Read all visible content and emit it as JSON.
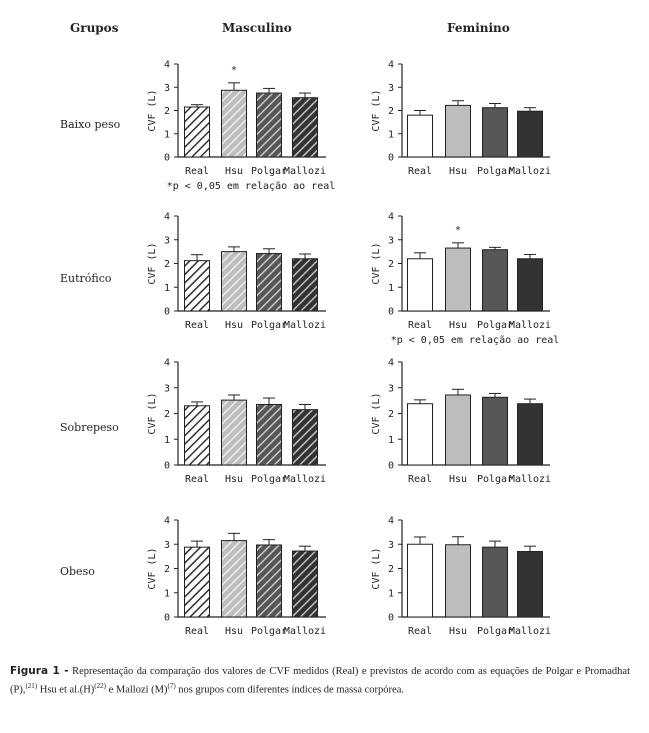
{
  "headers": {
    "groups": "Grupos",
    "male": "Masculino",
    "female": "Feminino"
  },
  "rows": [
    "Baixo peso",
    "Eutrófico",
    "Sobrepeso",
    "Obeso"
  ],
  "caption": {
    "label": "Figura 1 -",
    "text1": "Representação da comparação dos valores de CVF medidos (Real) e previstos de acordo com as equações de Polgar e Promadhat (P),",
    "ref1": "(21)",
    "text2": " Hsu et al.(H)",
    "ref2": "(22)",
    "text3": " e Mallozi (M)",
    "ref3": "(7)",
    "text4": " nos grupos com diferentes índices de massa corpórea."
  },
  "colors": {
    "real": "#ffffff",
    "hsu": "#bdbdbd",
    "polgar": "#575757",
    "mallozi": "#333333"
  },
  "chart_data": [
    {
      "type": "bar",
      "group": "Baixo peso",
      "sex": "Masculino",
      "categories": [
        "Real",
        "Hsu",
        "Polgar",
        "Mallozi"
      ],
      "values": [
        2.15,
        2.87,
        2.75,
        2.55
      ],
      "errors": [
        0.1,
        0.32,
        0.2,
        0.2
      ],
      "ylabel": "CVF (L)",
      "ylim": [
        0,
        4
      ],
      "yticks": [
        0,
        1,
        2,
        3,
        4
      ],
      "significant": [
        false,
        true,
        false,
        false
      ],
      "note": "*p < 0,05 em relação ao real",
      "hatched": true
    },
    {
      "type": "bar",
      "group": "Baixo peso",
      "sex": "Feminino",
      "categories": [
        "Real",
        "Hsu",
        "Polgar",
        "Mallozi"
      ],
      "values": [
        1.8,
        2.22,
        2.12,
        1.97
      ],
      "errors": [
        0.2,
        0.2,
        0.18,
        0.15
      ],
      "ylabel": "CVF (L)",
      "ylim": [
        0,
        4
      ],
      "yticks": [
        0,
        1,
        2,
        3,
        4
      ],
      "significant": [
        false,
        false,
        false,
        false
      ],
      "note": "",
      "hatched": false
    },
    {
      "type": "bar",
      "group": "Eutrófico",
      "sex": "Masculino",
      "categories": [
        "Real",
        "Hsu",
        "Polgar",
        "Mallozi"
      ],
      "values": [
        2.12,
        2.5,
        2.42,
        2.2
      ],
      "errors": [
        0.25,
        0.2,
        0.2,
        0.2
      ],
      "ylabel": "CVF (L)",
      "ylim": [
        0,
        4
      ],
      "yticks": [
        0,
        1,
        2,
        3,
        4
      ],
      "significant": [
        false,
        false,
        false,
        false
      ],
      "note": "",
      "hatched": true
    },
    {
      "type": "bar",
      "group": "Eutrófico",
      "sex": "Feminino",
      "categories": [
        "Real",
        "Hsu",
        "Polgar",
        "Mallozi"
      ],
      "values": [
        2.2,
        2.65,
        2.58,
        2.2
      ],
      "errors": [
        0.25,
        0.22,
        0.1,
        0.18
      ],
      "ylabel": "CVF (L)",
      "ylim": [
        0,
        4
      ],
      "yticks": [
        0,
        1,
        2,
        3,
        4
      ],
      "significant": [
        false,
        true,
        false,
        false
      ],
      "note": "*p < 0,05 em relação ao real",
      "hatched": false
    },
    {
      "type": "bar",
      "group": "Sobrepeso",
      "sex": "Masculino",
      "categories": [
        "Real",
        "Hsu",
        "Polgar",
        "Mallozi"
      ],
      "values": [
        2.3,
        2.52,
        2.35,
        2.15
      ],
      "errors": [
        0.15,
        0.2,
        0.25,
        0.2
      ],
      "ylabel": "CVF (L)",
      "ylim": [
        0,
        4
      ],
      "yticks": [
        0,
        1,
        2,
        3,
        4
      ],
      "significant": [
        false,
        false,
        false,
        false
      ],
      "note": "",
      "hatched": true
    },
    {
      "type": "bar",
      "group": "Sobrepeso",
      "sex": "Feminino",
      "categories": [
        "Real",
        "Hsu",
        "Polgar",
        "Mallozi"
      ],
      "values": [
        2.38,
        2.72,
        2.63,
        2.38
      ],
      "errors": [
        0.15,
        0.22,
        0.15,
        0.18
      ],
      "ylabel": "CVF (L)",
      "ylim": [
        0,
        4
      ],
      "yticks": [
        0,
        1,
        2,
        3,
        4
      ],
      "significant": [
        false,
        false,
        false,
        false
      ],
      "note": "",
      "hatched": false
    },
    {
      "type": "bar",
      "group": "Obeso",
      "sex": "Masculino",
      "categories": [
        "Real",
        "Hsu",
        "Polgar",
        "Mallozi"
      ],
      "values": [
        2.88,
        3.15,
        2.97,
        2.72
      ],
      "errors": [
        0.25,
        0.3,
        0.22,
        0.2
      ],
      "ylabel": "CVF (L)",
      "ylim": [
        0,
        4
      ],
      "yticks": [
        0,
        1,
        2,
        3,
        4
      ],
      "significant": [
        false,
        false,
        false,
        false
      ],
      "note": "",
      "hatched": true
    },
    {
      "type": "bar",
      "group": "Obeso",
      "sex": "Feminino",
      "categories": [
        "Real",
        "Hsu",
        "Polgar",
        "Mallozi"
      ],
      "values": [
        3.0,
        2.98,
        2.88,
        2.7
      ],
      "errors": [
        0.3,
        0.33,
        0.25,
        0.22
      ],
      "ylabel": "CVF (L)",
      "ylim": [
        0,
        4
      ],
      "yticks": [
        0,
        1,
        2,
        3,
        4
      ],
      "significant": [
        false,
        false,
        false,
        false
      ],
      "note": "",
      "hatched": false
    }
  ]
}
